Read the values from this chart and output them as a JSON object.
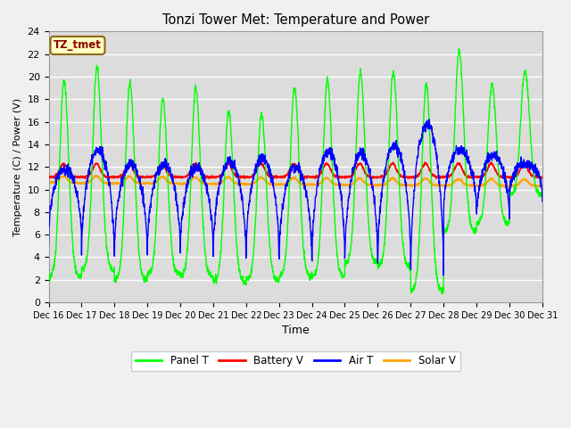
{
  "title": "Tonzi Tower Met: Temperature and Power",
  "xlabel": "Time",
  "ylabel": "Temperature (C) / Power (V)",
  "annotation": "TZ_tmet",
  "ylim": [
    0,
    24
  ],
  "xlim": [
    0,
    15
  ],
  "x_tick_labels": [
    "Dec 16",
    "Dec 17",
    "Dec 18",
    "Dec 19",
    "Dec 20",
    "Dec 21",
    "Dec 22",
    "Dec 23",
    "Dec 24",
    "Dec 25",
    "Dec 26",
    "Dec 27",
    "Dec 28",
    "Dec 29",
    "Dec 30",
    "Dec 31"
  ],
  "fig_bg_color": "#f0f0f0",
  "plot_bg_color": "#dcdcdc",
  "legend_labels": [
    "Panel T",
    "Battery V",
    "Air T",
    "Solar V"
  ],
  "panel_color": "#00ff00",
  "battery_color": "#ff0000",
  "air_color": "#0000ff",
  "solar_color": "#ffa500",
  "grid_color": "#ffffff",
  "panel_peaks": [
    19.7,
    20.9,
    19.5,
    18.0,
    19.0,
    17.0,
    16.7,
    19.0,
    19.7,
    20.4,
    20.5,
    19.3,
    22.3,
    19.3,
    20.5
  ],
  "panel_troughs": [
    2.2,
    2.9,
    2.0,
    2.5,
    2.3,
    1.8,
    2.0,
    2.3,
    2.3,
    3.5,
    3.2,
    1.0,
    6.3,
    7.0,
    9.5
  ],
  "air_peaks": [
    11.8,
    13.5,
    12.3,
    12.2,
    12.0,
    12.5,
    12.8,
    12.0,
    13.3,
    13.2,
    13.9,
    15.8,
    13.5,
    13.0,
    12.3
  ],
  "air_troughs": [
    5.7,
    4.0,
    4.2,
    4.5,
    4.5,
    4.0,
    4.2,
    3.7,
    3.8,
    3.6,
    3.5,
    2.5,
    8.0,
    7.5,
    9.5
  ]
}
